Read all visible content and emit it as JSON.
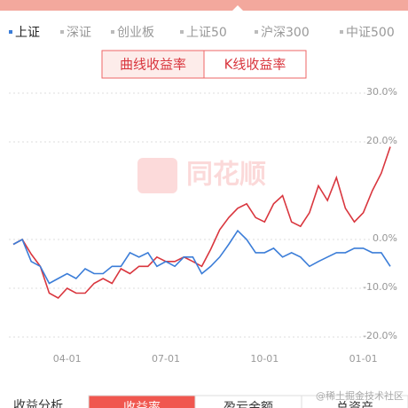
{
  "tabs": [
    "上证",
    "深证",
    "创业板",
    "上证50",
    "沪深300",
    "中证500"
  ],
  "selected_tab": 0,
  "toggle": [
    "曲线收益率",
    "K线收益率"
  ],
  "watermark": "同花顺",
  "chart_data": {
    "type": "line",
    "categories": [
      null,
      null,
      null,
      null,
      null,
      null,
      "04-01",
      null,
      null,
      null,
      null,
      null,
      null,
      null,
      null,
      null,
      null,
      "07-01",
      null,
      null,
      null,
      null,
      null,
      null,
      null,
      null,
      null,
      null,
      "10-01",
      null,
      null,
      null,
      null,
      null,
      null,
      null,
      null,
      null,
      null,
      "01-01",
      null,
      null,
      null
    ],
    "series": [
      {
        "color": "#d9363e",
        "values": [
          -1,
          0,
          -3,
          -5.5,
          -11,
          -12,
          -10,
          -11,
          -11,
          -9,
          -8,
          -9,
          -6,
          -7,
          -5.5,
          -5.5,
          -3.6,
          -4.5,
          -4.5,
          -3.6,
          -4.5,
          -5.5,
          -2,
          2,
          4.5,
          6.4,
          7.3,
          4.5,
          3.6,
          7.3,
          9,
          3.6,
          2.7,
          5.5,
          11,
          8,
          12.7,
          6.4,
          3.6,
          5.5,
          10,
          13.6,
          19
        ]
      },
      {
        "name": "上证",
        "color": "#3b7dd8",
        "values": [
          -1,
          0,
          -4.5,
          -5.5,
          -9,
          -8,
          -7,
          -8,
          -6,
          -7,
          -7,
          -5.5,
          -5.5,
          -2.7,
          -3.6,
          -2.7,
          -5.5,
          -4.5,
          -5.5,
          -3.6,
          -3.6,
          -7,
          -5.5,
          -3.6,
          -1,
          1.8,
          0,
          -2.7,
          -2.7,
          -1.8,
          -3.6,
          -2.7,
          -3.6,
          -5.5,
          -4.5,
          -3.6,
          -2.7,
          -2.7,
          -1.8,
          -1.8,
          -2.7,
          -2.7,
          -5.5
        ]
      }
    ],
    "ylim": [
      -21,
      31
    ],
    "yticks": [
      {
        "value": 30,
        "label": "30.0%"
      },
      {
        "value": 20,
        "label": "20.0%"
      },
      {
        "value": 0,
        "label": "0.0%"
      },
      {
        "value": -10,
        "label": "-10.0%"
      },
      {
        "value": -20,
        "label": "-20.0%"
      }
    ],
    "grid": true
  },
  "bottom": {
    "label": "收益分析",
    "buttons": [
      "收益率",
      "盈亏金额",
      "总资产"
    ],
    "selected": 0
  },
  "credit": "@稀土掘金技术社区"
}
